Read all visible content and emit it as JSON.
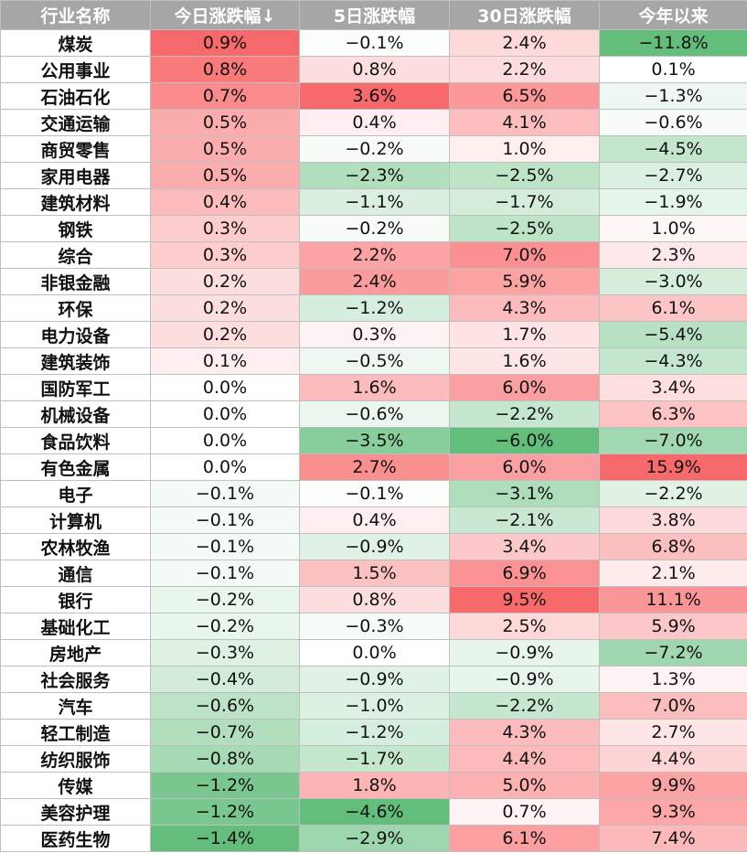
{
  "chart_data": {
    "type": "table",
    "columns": [
      "行业名称",
      "今日涨跌幅↓",
      "5日涨跌幅",
      "30日涨跌幅",
      "今年以来"
    ],
    "rows": [
      {
        "name": "煤炭",
        "values": [
          "0.9%",
          "−0.1%",
          "2.4%",
          "−11.8%"
        ]
      },
      {
        "name": "公用事业",
        "values": [
          "0.8%",
          "0.8%",
          "2.2%",
          "0.1%"
        ]
      },
      {
        "name": "石油石化",
        "values": [
          "0.7%",
          "3.6%",
          "6.5%",
          "−1.3%"
        ]
      },
      {
        "name": "交通运输",
        "values": [
          "0.5%",
          "0.4%",
          "4.1%",
          "−0.6%"
        ]
      },
      {
        "name": "商贸零售",
        "values": [
          "0.5%",
          "−0.2%",
          "1.0%",
          "−4.5%"
        ]
      },
      {
        "name": "家用电器",
        "values": [
          "0.5%",
          "−2.3%",
          "−2.5%",
          "−2.7%"
        ]
      },
      {
        "name": "建筑材料",
        "values": [
          "0.4%",
          "−1.1%",
          "−1.7%",
          "−1.9%"
        ]
      },
      {
        "name": "钢铁",
        "values": [
          "0.3%",
          "−0.2%",
          "−2.5%",
          "1.0%"
        ]
      },
      {
        "name": "综合",
        "values": [
          "0.3%",
          "2.2%",
          "7.0%",
          "2.3%"
        ]
      },
      {
        "name": "非银金融",
        "values": [
          "0.2%",
          "2.4%",
          "5.9%",
          "−3.0%"
        ]
      },
      {
        "name": "环保",
        "values": [
          "0.2%",
          "−1.2%",
          "4.3%",
          "6.1%"
        ]
      },
      {
        "name": "电力设备",
        "values": [
          "0.2%",
          "0.3%",
          "1.7%",
          "−5.4%"
        ]
      },
      {
        "name": "建筑装饰",
        "values": [
          "0.1%",
          "−0.5%",
          "1.6%",
          "−4.3%"
        ]
      },
      {
        "name": "国防军工",
        "values": [
          "0.0%",
          "1.6%",
          "6.0%",
          "3.4%"
        ]
      },
      {
        "name": "机械设备",
        "values": [
          "0.0%",
          "−0.6%",
          "−2.2%",
          "6.3%"
        ]
      },
      {
        "name": "食品饮料",
        "values": [
          "0.0%",
          "−3.5%",
          "−6.0%",
          "−7.0%"
        ]
      },
      {
        "name": "有色金属",
        "values": [
          "0.0%",
          "2.7%",
          "6.0%",
          "15.9%"
        ]
      },
      {
        "name": "电子",
        "values": [
          "−0.1%",
          "−0.1%",
          "−3.1%",
          "−2.2%"
        ]
      },
      {
        "name": "计算机",
        "values": [
          "−0.1%",
          "0.4%",
          "−2.1%",
          "3.8%"
        ]
      },
      {
        "name": "农林牧渔",
        "values": [
          "−0.1%",
          "−0.9%",
          "3.4%",
          "6.8%"
        ]
      },
      {
        "name": "通信",
        "values": [
          "−0.1%",
          "1.5%",
          "6.9%",
          "2.1%"
        ]
      },
      {
        "name": "银行",
        "values": [
          "−0.2%",
          "0.8%",
          "9.5%",
          "11.1%"
        ]
      },
      {
        "name": "基础化工",
        "values": [
          "−0.2%",
          "−0.3%",
          "2.5%",
          "5.9%"
        ]
      },
      {
        "name": "房地产",
        "values": [
          "−0.3%",
          "0.0%",
          "−0.9%",
          "−7.2%"
        ]
      },
      {
        "name": "社会服务",
        "values": [
          "−0.4%",
          "−0.9%",
          "−0.9%",
          "1.3%"
        ]
      },
      {
        "name": "汽车",
        "values": [
          "−0.6%",
          "−1.0%",
          "−2.2%",
          "7.0%"
        ]
      },
      {
        "name": "轻工制造",
        "values": [
          "−0.7%",
          "−1.2%",
          "4.3%",
          "2.7%"
        ]
      },
      {
        "name": "纺织服饰",
        "values": [
          "−0.8%",
          "−1.7%",
          "4.4%",
          "4.4%"
        ]
      },
      {
        "name": "传媒",
        "values": [
          "−1.2%",
          "1.8%",
          "5.0%",
          "9.9%"
        ]
      },
      {
        "name": "美容护理",
        "values": [
          "−1.2%",
          "−4.6%",
          "0.7%",
          "9.3%"
        ]
      },
      {
        "name": "医药生物",
        "values": [
          "−1.4%",
          "−2.9%",
          "6.1%",
          "7.4%"
        ]
      }
    ]
  },
  "colors": {
    "header_bg": "#a6a6a6",
    "header_text": "#ffffff",
    "positive_max": "#f8696b",
    "negative_max": "#63be7b",
    "neutral": "#ffffff",
    "grid": "#bfbfbf"
  }
}
